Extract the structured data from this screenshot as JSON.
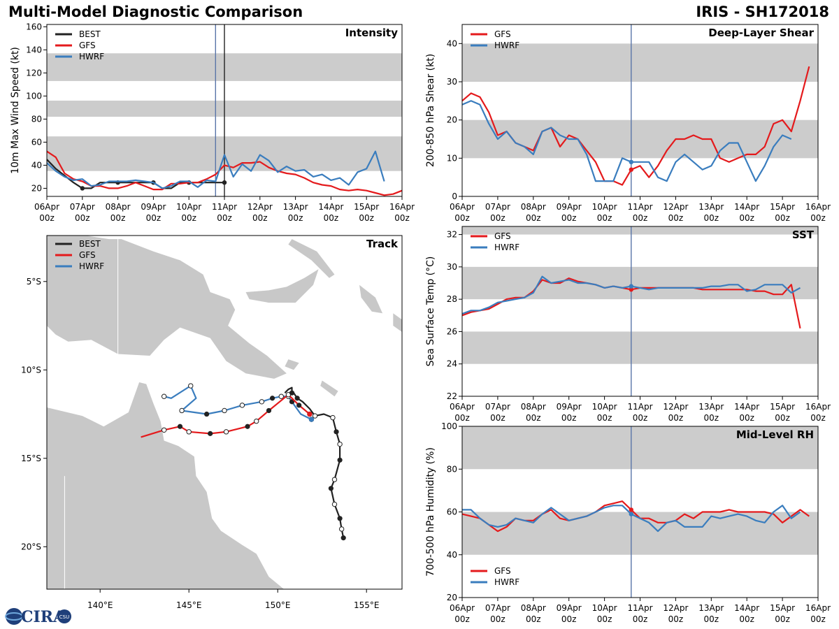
{
  "header": {
    "title_left": "Multi-Model Diagnostic Comparison",
    "title_right": "IRIS - SH172018"
  },
  "logo": {
    "text": "CIRA",
    "sub": "CSU"
  },
  "colors": {
    "BEST": "#222222",
    "GFS": "#e41a1c",
    "HWRF": "#3a7dbe",
    "band": "#cccccc",
    "land": "#c8c8c8",
    "vline": "#5a75a8"
  },
  "x_ticks": {
    "values": [
      0,
      1,
      2,
      3,
      4,
      5,
      6,
      7,
      8,
      9,
      10
    ],
    "dates": [
      "06Apr",
      "07Apr",
      "08Apr",
      "09Apr",
      "10Apr",
      "11Apr",
      "12Apr",
      "13Apr",
      "14Apr",
      "15Apr",
      "16Apr"
    ],
    "hour": "00z"
  },
  "current_day": 4.75,
  "chart_data": [
    {
      "id": "intensity",
      "type": "line",
      "title": "Intensity",
      "ylabel": "10m Max Wind Speed (kt)",
      "xlim": [
        0,
        10
      ],
      "ylim": [
        13,
        162
      ],
      "yticks": [
        20,
        40,
        60,
        80,
        100,
        120,
        140,
        160
      ],
      "bands": [
        [
          35,
          65
        ],
        [
          82,
          96
        ],
        [
          113,
          137
        ]
      ],
      "vlines": [
        {
          "x": 4.75,
          "color": "vline"
        },
        {
          "x": 5.0,
          "color": "BEST"
        }
      ],
      "legend": [
        "BEST",
        "GFS",
        "HWRF"
      ],
      "series": [
        {
          "name": "BEST",
          "x": [
            0,
            0.25,
            0.5,
            0.75,
            1.0,
            1.25,
            1.5,
            1.75,
            2.0,
            2.25,
            2.5,
            2.75,
            3.0,
            3.25,
            3.5,
            3.75,
            4.0,
            4.25,
            4.5,
            4.75,
            5.0
          ],
          "y": [
            45,
            37,
            31,
            25,
            20,
            20,
            25,
            25,
            25,
            25,
            25,
            25,
            25,
            20,
            20,
            25,
            25,
            25,
            25,
            25,
            25
          ],
          "markers": [
            1.0,
            2.0,
            3.0,
            4.0,
            5.0
          ]
        },
        {
          "name": "GFS",
          "x": [
            0,
            0.25,
            0.5,
            0.75,
            1.0,
            1.25,
            1.5,
            1.75,
            2.0,
            2.25,
            2.5,
            2.75,
            3.0,
            3.25,
            3.5,
            3.75,
            4.0,
            4.25,
            4.5,
            4.75,
            5.0,
            5.25,
            5.5,
            5.75,
            6.0,
            6.25,
            6.5,
            6.75,
            7.0,
            7.25,
            7.5,
            7.75,
            8.0,
            8.25,
            8.5,
            8.75,
            9.0,
            9.25,
            9.5,
            9.75,
            10.0
          ],
          "y": [
            52,
            47,
            33,
            28,
            26,
            22,
            22,
            20,
            20,
            22,
            25,
            22,
            19,
            19,
            24,
            24,
            25,
            25,
            28,
            32,
            40,
            38,
            42,
            42,
            43,
            38,
            35,
            33,
            32,
            29,
            25,
            23,
            22,
            19,
            18,
            19,
            18,
            16,
            14,
            15,
            18
          ]
        },
        {
          "name": "HWRF",
          "x": [
            0,
            0.25,
            0.5,
            0.75,
            1.0,
            1.25,
            1.5,
            1.75,
            2.0,
            2.25,
            2.5,
            2.75,
            3.0,
            3.25,
            3.5,
            3.75,
            4.0,
            4.25,
            4.5,
            4.75,
            5.0,
            5.25,
            5.5,
            5.75,
            6.0,
            6.25,
            6.5,
            6.75,
            7.0,
            7.25,
            7.5,
            7.75,
            8.0,
            8.25,
            8.5,
            8.75,
            9.0,
            9.25,
            9.5
          ],
          "y": [
            42,
            35,
            30,
            27,
            28,
            22,
            23,
            26,
            26,
            26,
            27,
            26,
            25,
            20,
            22,
            26,
            26,
            21,
            27,
            26,
            49,
            30,
            41,
            35,
            49,
            44,
            34,
            39,
            35,
            36,
            30,
            32,
            27,
            29,
            23,
            34,
            37,
            52,
            26
          ]
        }
      ]
    },
    {
      "id": "shear",
      "type": "line",
      "title": "Deep-Layer Shear",
      "ylabel": "200-850 hPa Shear (kt)",
      "xlim": [
        0,
        10
      ],
      "ylim": [
        0,
        45
      ],
      "yticks": [
        0,
        10,
        20,
        30,
        40
      ],
      "bands": [
        [
          10,
          20
        ],
        [
          30,
          40
        ]
      ],
      "vlines": [
        {
          "x": 4.75,
          "color": "vline"
        }
      ],
      "legend": [
        "GFS",
        "HWRF"
      ],
      "series": [
        {
          "name": "GFS",
          "x": [
            0,
            0.25,
            0.5,
            0.75,
            1.0,
            1.25,
            1.5,
            1.75,
            2.0,
            2.25,
            2.5,
            2.75,
            3.0,
            3.25,
            3.5,
            3.75,
            4.0,
            4.25,
            4.5,
            4.75,
            5.0,
            5.25,
            5.5,
            5.75,
            6.0,
            6.25,
            6.5,
            6.75,
            7.0,
            7.25,
            7.5,
            7.75,
            8.0,
            8.25,
            8.5,
            8.75,
            9.0,
            9.25,
            9.5,
            9.75,
            10.0
          ],
          "y": [
            25,
            27,
            26,
            22,
            16,
            17,
            14,
            13,
            12,
            17,
            18,
            13,
            16,
            15,
            12,
            9,
            4,
            4,
            3,
            7,
            8,
            5,
            8,
            12,
            15,
            15,
            16,
            15,
            15,
            10,
            9,
            10,
            11,
            11,
            13,
            19,
            20,
            17,
            25,
            34,
            null
          ],
          "marker": 4.75
        },
        {
          "name": "HWRF",
          "x": [
            0,
            0.25,
            0.5,
            0.75,
            1.0,
            1.25,
            1.5,
            1.75,
            2.0,
            2.25,
            2.5,
            2.75,
            3.0,
            3.25,
            3.5,
            3.75,
            4.0,
            4.25,
            4.5,
            4.75,
            5.0,
            5.25,
            5.5,
            5.75,
            6.0,
            6.25,
            6.5,
            6.75,
            7.0,
            7.25,
            7.5,
            7.75,
            8.0,
            8.25,
            8.5,
            8.75,
            9.0,
            9.25,
            9.5
          ],
          "y": [
            24,
            25,
            24,
            19,
            15,
            17,
            14,
            13,
            11,
            17,
            18,
            16,
            15,
            15,
            11,
            4,
            4,
            4,
            10,
            9,
            9,
            9,
            5,
            4,
            9,
            11,
            9,
            7,
            8,
            12,
            14,
            14,
            9,
            4,
            8,
            13,
            16,
            15,
            null
          ],
          "marker": 4.75
        }
      ]
    },
    {
      "id": "sst",
      "type": "line",
      "title": "SST",
      "ylabel": "Sea Surface Temp (°C)",
      "xlim": [
        0,
        10
      ],
      "ylim": [
        22,
        32.5
      ],
      "yticks": [
        22,
        24,
        26,
        28,
        30,
        32
      ],
      "bands": [
        [
          24,
          26
        ],
        [
          28,
          30
        ],
        [
          32,
          32.5
        ]
      ],
      "vlines": [
        {
          "x": 4.75,
          "color": "vline"
        }
      ],
      "legend": [
        "GFS",
        "HWRF"
      ],
      "series": [
        {
          "name": "GFS",
          "x": [
            0,
            0.25,
            0.5,
            0.75,
            1.0,
            1.25,
            1.5,
            1.75,
            2.0,
            2.25,
            2.5,
            2.75,
            3.0,
            3.25,
            3.5,
            3.75,
            4.0,
            4.25,
            4.5,
            4.75,
            5.0,
            5.25,
            5.5,
            5.75,
            6.0,
            6.25,
            6.5,
            6.75,
            7.0,
            7.25,
            7.5,
            7.75,
            8.0,
            8.25,
            8.5,
            8.75,
            9.0,
            9.25,
            9.5
          ],
          "y": [
            27.0,
            27.2,
            27.3,
            27.4,
            27.7,
            28.0,
            28.1,
            28.1,
            28.5,
            29.2,
            29.0,
            29.0,
            29.3,
            29.1,
            29.0,
            28.9,
            28.7,
            28.8,
            28.7,
            28.6,
            28.7,
            28.7,
            28.7,
            28.7,
            28.7,
            28.7,
            28.7,
            28.6,
            28.6,
            28.6,
            28.6,
            28.6,
            28.6,
            28.5,
            28.5,
            28.3,
            28.3,
            28.9,
            26.2
          ],
          "marker": 4.75
        },
        {
          "name": "HWRF",
          "x": [
            0,
            0.25,
            0.5,
            0.75,
            1.0,
            1.25,
            1.5,
            1.75,
            2.0,
            2.25,
            2.5,
            2.75,
            3.0,
            3.25,
            3.5,
            3.75,
            4.0,
            4.25,
            4.5,
            4.75,
            5.0,
            5.25,
            5.5,
            5.75,
            6.0,
            6.25,
            6.5,
            6.75,
            7.0,
            7.25,
            7.5,
            7.75,
            8.0,
            8.25,
            8.5,
            8.75,
            9.0,
            9.25,
            9.5
          ],
          "y": [
            27.1,
            27.3,
            27.3,
            27.5,
            27.8,
            27.9,
            28.0,
            28.1,
            28.4,
            29.4,
            29.0,
            29.1,
            29.2,
            29.0,
            29.0,
            28.9,
            28.7,
            28.8,
            28.7,
            28.8,
            28.7,
            28.6,
            28.7,
            28.7,
            28.7,
            28.7,
            28.7,
            28.7,
            28.8,
            28.8,
            28.9,
            28.9,
            28.5,
            28.6,
            28.9,
            28.9,
            28.9,
            28.4,
            28.7
          ],
          "marker": 4.75
        }
      ]
    },
    {
      "id": "rh",
      "type": "line",
      "title": "Mid-Level RH",
      "ylabel": "700-500 hPa Humidity (%)",
      "xlim": [
        0,
        10
      ],
      "ylim": [
        20,
        100
      ],
      "yticks": [
        20,
        40,
        60,
        80,
        100
      ],
      "bands": [
        [
          40,
          60
        ],
        [
          80,
          100
        ]
      ],
      "vlines": [
        {
          "x": 4.75,
          "color": "vline"
        }
      ],
      "legend": [
        "GFS",
        "HWRF"
      ],
      "legend_pos": "bottom-left",
      "series": [
        {
          "name": "GFS",
          "x": [
            0,
            0.25,
            0.5,
            0.75,
            1.0,
            1.25,
            1.5,
            1.75,
            2.0,
            2.25,
            2.5,
            2.75,
            3.0,
            3.25,
            3.5,
            3.75,
            4.0,
            4.25,
            4.5,
            4.75,
            5.0,
            5.25,
            5.5,
            5.75,
            6.0,
            6.25,
            6.5,
            6.75,
            7.0,
            7.25,
            7.5,
            7.75,
            8.0,
            8.25,
            8.5,
            8.75,
            9.0,
            9.25,
            9.5,
            9.75
          ],
          "y": [
            59,
            58,
            57,
            54,
            51,
            53,
            57,
            56,
            56,
            59,
            61,
            57,
            56,
            57,
            58,
            60,
            63,
            64,
            65,
            61,
            57,
            57,
            55,
            55,
            56,
            59,
            57,
            60,
            60,
            60,
            61,
            60,
            60,
            60,
            60,
            59,
            55,
            58,
            61,
            58
          ],
          "marker": 4.75
        },
        {
          "name": "HWRF",
          "x": [
            0,
            0.25,
            0.5,
            0.75,
            1.0,
            1.25,
            1.5,
            1.75,
            2.0,
            2.25,
            2.5,
            2.75,
            3.0,
            3.25,
            3.5,
            3.75,
            4.0,
            4.25,
            4.5,
            4.75,
            5.0,
            5.25,
            5.5,
            5.75,
            6.0,
            6.25,
            6.5,
            6.75,
            7.0,
            7.25,
            7.5,
            7.75,
            8.0,
            8.25,
            8.5,
            8.75,
            9.0,
            9.25,
            9.5
          ],
          "y": [
            61,
            61,
            57,
            54,
            53,
            54,
            57,
            56,
            55,
            59,
            62,
            59,
            56,
            57,
            58,
            60,
            62,
            63,
            63,
            59,
            57,
            55,
            51,
            55,
            56,
            53,
            53,
            53,
            58,
            57,
            58,
            59,
            58,
            56,
            55,
            60,
            63,
            57,
            60
          ],
          "marker": 4.75
        }
      ]
    },
    {
      "id": "track",
      "type": "scatter",
      "title": "Track",
      "xlim": [
        137,
        157
      ],
      "ylim": [
        -22.4,
        -2.4
      ],
      "xticks": [
        140,
        145,
        150,
        155
      ],
      "xtick_labels": [
        "140°E",
        "145°E",
        "150°E",
        "155°E"
      ],
      "yticks": [
        -5,
        -10,
        -15,
        -20
      ],
      "ytick_labels": [
        "5°S",
        "10°S",
        "15°S",
        "20°S"
      ],
      "legend": [
        "BEST",
        "GFS",
        "HWRF"
      ],
      "series": [
        {
          "name": "BEST",
          "lon": [
            153.7,
            153.6,
            153.5,
            153.2,
            153.0,
            153.2,
            153.5,
            153.5,
            153.3,
            153.1,
            152.6,
            152.1,
            151.8,
            151.4,
            151.1,
            150.9,
            150.8,
            150.8,
            150.6,
            150.4
          ],
          "lat": [
            -19.5,
            -19.0,
            -18.4,
            -17.6,
            -16.7,
            -16.2,
            -15.1,
            -14.2,
            -13.5,
            -12.7,
            -12.5,
            -12.6,
            -12.2,
            -11.8,
            -11.6,
            -11.3,
            -11.3,
            -11.0,
            -11.1,
            -11.3
          ],
          "open": [
            1,
            3,
            5,
            7,
            9,
            11
          ],
          "filled": [
            0,
            2,
            4,
            6,
            8,
            14,
            16
          ]
        },
        {
          "name": "GFS",
          "lon": [
            151.8,
            151.2,
            150.6,
            149.5,
            148.8,
            148.3,
            147.1,
            146.2,
            145.0,
            144.5,
            143.6,
            142.3
          ],
          "lat": [
            -12.5,
            -12.0,
            -11.4,
            -12.3,
            -12.9,
            -13.2,
            -13.5,
            -13.6,
            -13.5,
            -13.2,
            -13.4,
            -13.8
          ],
          "open": [
            0,
            2,
            4,
            6,
            8,
            10
          ],
          "filled": [
            1,
            3,
            5,
            7,
            9
          ]
        },
        {
          "name": "HWRF",
          "lon": [
            151.9,
            151.3,
            150.8,
            150.6,
            150.2,
            149.7,
            149.1,
            148.0,
            147.0,
            146.0,
            144.6,
            145.4,
            145.1,
            144.0,
            143.6
          ],
          "lat": [
            -12.8,
            -12.5,
            -11.8,
            -11.5,
            -11.5,
            -11.6,
            -11.8,
            -12.0,
            -12.3,
            -12.5,
            -12.3,
            -11.6,
            -10.9,
            -11.6,
            -11.5
          ],
          "open": [
            0,
            3,
            4,
            6,
            7,
            8,
            10,
            12,
            14
          ],
          "filled": [
            2,
            5,
            9
          ]
        }
      ]
    }
  ]
}
